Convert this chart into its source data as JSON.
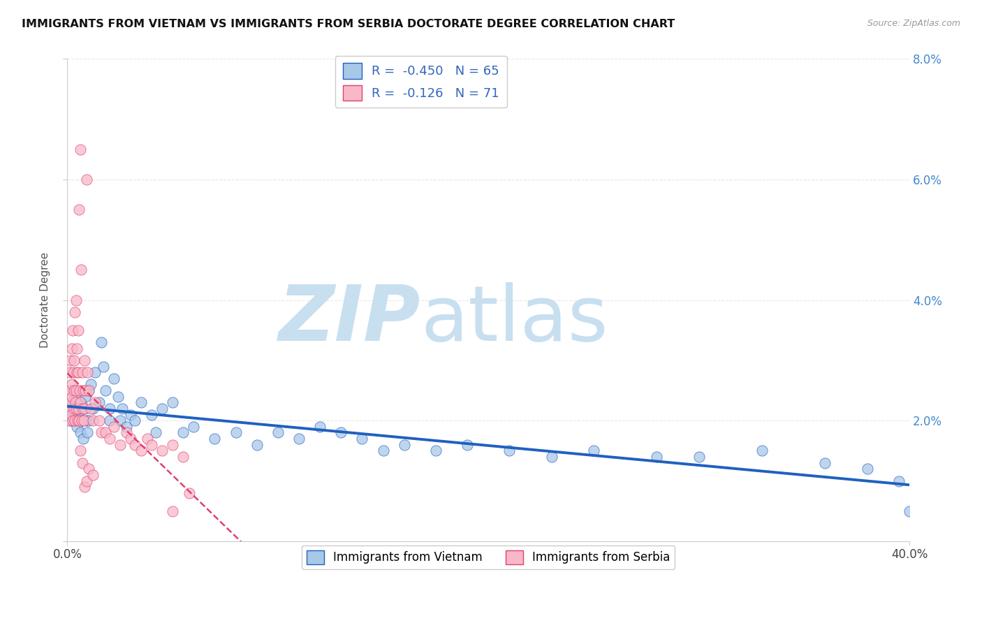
{
  "title": "IMMIGRANTS FROM VIETNAM VS IMMIGRANTS FROM SERBIA DOCTORATE DEGREE CORRELATION CHART",
  "source": "Source: ZipAtlas.com",
  "ylabel": "Doctorate Degree",
  "xlim": [
    0.0,
    40.0
  ],
  "ylim": [
    0.0,
    8.0
  ],
  "legend_vietnam_R": "-0.450",
  "legend_vietnam_N": "65",
  "legend_serbia_R": "-0.126",
  "legend_serbia_N": "71",
  "color_vietnam": "#a8c8e8",
  "color_serbia": "#f8b8c8",
  "color_trendline_vietnam": "#2060c0",
  "color_trendline_serbia": "#e04070",
  "watermark_zip_color": "#c8dff0",
  "watermark_atlas_color": "#c8dff0",
  "background_color": "#ffffff",
  "grid_color": "#e8e8e8",
  "vietnam_x": [
    0.1,
    0.15,
    0.2,
    0.25,
    0.3,
    0.35,
    0.4,
    0.45,
    0.5,
    0.55,
    0.6,
    0.65,
    0.7,
    0.75,
    0.8,
    0.85,
    0.9,
    0.95,
    1.0,
    1.0,
    1.1,
    1.2,
    1.3,
    1.5,
    1.6,
    1.7,
    1.8,
    2.0,
    2.0,
    2.2,
    2.4,
    2.5,
    2.6,
    2.8,
    3.0,
    3.2,
    3.5,
    4.0,
    4.2,
    4.5,
    5.0,
    5.5,
    6.0,
    7.0,
    8.0,
    9.0,
    10.0,
    11.0,
    12.0,
    13.0,
    14.0,
    15.0,
    16.0,
    17.5,
    19.0,
    21.0,
    23.0,
    25.0,
    28.0,
    30.0,
    33.0,
    36.0,
    38.0,
    39.5,
    40.0
  ],
  "vietnam_y": [
    2.2,
    2.0,
    2.1,
    2.3,
    2.5,
    2.0,
    2.4,
    1.9,
    2.1,
    2.2,
    1.8,
    2.3,
    2.0,
    1.7,
    2.2,
    2.4,
    2.0,
    1.8,
    2.0,
    2.5,
    2.6,
    2.2,
    2.8,
    2.3,
    3.3,
    2.9,
    2.5,
    2.2,
    2.0,
    2.7,
    2.4,
    2.0,
    2.2,
    1.9,
    2.1,
    2.0,
    2.3,
    2.1,
    1.8,
    2.2,
    2.3,
    1.8,
    1.9,
    1.7,
    1.8,
    1.6,
    1.8,
    1.7,
    1.9,
    1.8,
    1.7,
    1.5,
    1.6,
    1.5,
    1.6,
    1.5,
    1.4,
    1.5,
    1.4,
    1.4,
    1.5,
    1.3,
    1.2,
    1.0,
    0.5
  ],
  "serbia_x": [
    0.05,
    0.08,
    0.1,
    0.12,
    0.15,
    0.15,
    0.18,
    0.2,
    0.2,
    0.22,
    0.25,
    0.25,
    0.28,
    0.3,
    0.3,
    0.32,
    0.35,
    0.35,
    0.38,
    0.4,
    0.4,
    0.42,
    0.45,
    0.45,
    0.48,
    0.5,
    0.5,
    0.52,
    0.55,
    0.55,
    0.58,
    0.6,
    0.62,
    0.65,
    0.68,
    0.7,
    0.72,
    0.75,
    0.78,
    0.8,
    0.82,
    0.85,
    0.9,
    0.95,
    1.0,
    1.1,
    1.2,
    1.3,
    1.5,
    1.6,
    1.8,
    2.0,
    2.2,
    2.5,
    2.8,
    3.0,
    3.2,
    3.5,
    3.8,
    4.0,
    4.5,
    5.0,
    5.0,
    5.5,
    5.8,
    0.6,
    0.7,
    0.8,
    0.9,
    1.0,
    1.2
  ],
  "serbia_y": [
    2.2,
    2.5,
    2.0,
    2.8,
    3.0,
    2.3,
    2.1,
    2.6,
    3.2,
    2.4,
    3.5,
    2.0,
    2.8,
    2.2,
    3.0,
    2.5,
    3.8,
    2.0,
    2.3,
    4.0,
    2.2,
    2.5,
    2.8,
    3.2,
    2.0,
    3.5,
    2.2,
    2.8,
    5.5,
    2.0,
    2.5,
    6.5,
    2.3,
    4.5,
    2.0,
    2.8,
    2.2,
    2.5,
    2.0,
    3.0,
    2.2,
    2.5,
    6.0,
    2.8,
    2.5,
    2.2,
    2.0,
    2.3,
    2.0,
    1.8,
    1.8,
    1.7,
    1.9,
    1.6,
    1.8,
    1.7,
    1.6,
    1.5,
    1.7,
    1.6,
    1.5,
    1.6,
    0.5,
    1.4,
    0.8,
    1.5,
    1.3,
    0.9,
    1.0,
    1.2,
    1.1
  ]
}
